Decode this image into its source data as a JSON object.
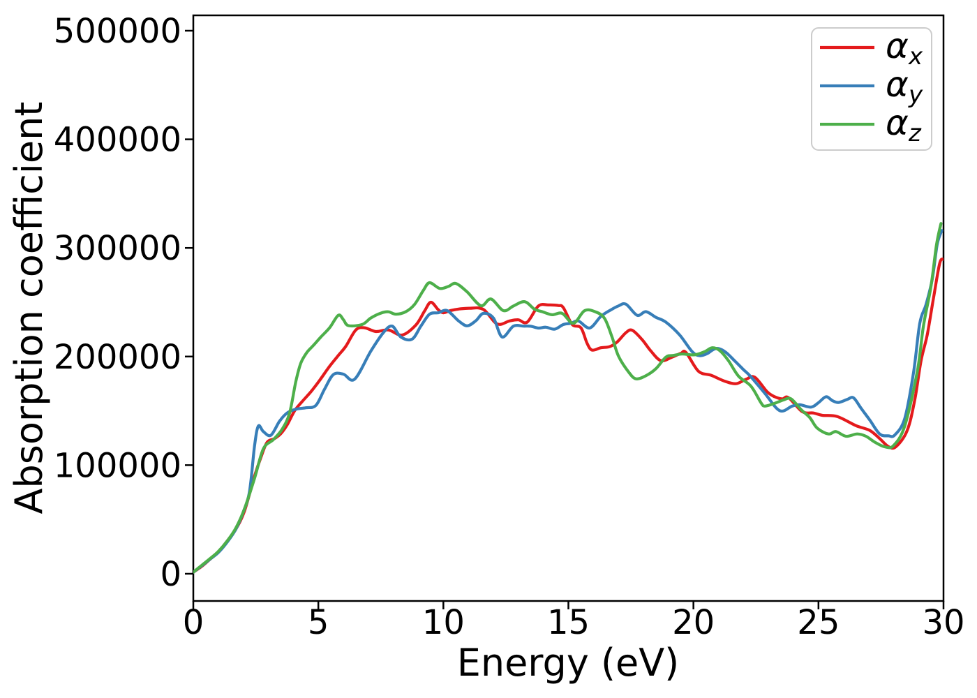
{
  "figure": {
    "background": "#ffffff",
    "spine_color": "#000000"
  },
  "chart_data": {
    "type": "line",
    "title": "",
    "xlabel": "Energy (eV)",
    "ylabel": "Absorption coefficient",
    "xlim": [
      0,
      30
    ],
    "ylim": [
      -25000,
      515000
    ],
    "xticks": [
      0,
      5,
      10,
      15,
      20,
      25,
      30
    ],
    "yticks": [
      0,
      100000,
      200000,
      300000,
      400000,
      500000
    ],
    "grid": false,
    "legend": {
      "position": "upper right",
      "frame": true,
      "border_color": "#cccccc"
    },
    "series": [
      {
        "name": "alpha_x",
        "label_base": "α",
        "label_sub": "x",
        "color": "#e41a1c",
        "points": [
          [
            0,
            1500
          ],
          [
            0.35,
            7000
          ],
          [
            0.7,
            14000
          ],
          [
            1.0,
            20000
          ],
          [
            1.35,
            30000
          ],
          [
            1.7,
            41000
          ],
          [
            2.05,
            58000
          ],
          [
            2.45,
            90000
          ],
          [
            2.7,
            107000
          ],
          [
            2.95,
            121000
          ],
          [
            3.25,
            124500
          ],
          [
            3.5,
            129000
          ],
          [
            3.75,
            137000
          ],
          [
            4.05,
            150000
          ],
          [
            4.35,
            158500
          ],
          [
            4.7,
            167500
          ],
          [
            5.05,
            178000
          ],
          [
            5.45,
            191000
          ],
          [
            5.8,
            201000
          ],
          [
            6.1,
            209500
          ],
          [
            6.5,
            224500
          ],
          [
            6.85,
            226500
          ],
          [
            7.3,
            223000
          ],
          [
            7.8,
            224500
          ],
          [
            8.35,
            219800
          ],
          [
            8.9,
            229000
          ],
          [
            9.25,
            242000
          ],
          [
            9.5,
            250000
          ],
          [
            9.8,
            243000
          ],
          [
            10.0,
            240300
          ],
          [
            10.3,
            242400
          ],
          [
            10.65,
            243800
          ],
          [
            11.05,
            244500
          ],
          [
            11.6,
            243400
          ],
          [
            12.15,
            230000
          ],
          [
            12.65,
            232800
          ],
          [
            13.0,
            233800
          ],
          [
            13.35,
            231600
          ],
          [
            13.8,
            246500
          ],
          [
            14.2,
            247500
          ],
          [
            14.6,
            247000
          ],
          [
            14.8,
            245000
          ],
          [
            15.15,
            229500
          ],
          [
            15.5,
            226500
          ],
          [
            15.75,
            212000
          ],
          [
            15.95,
            205900
          ],
          [
            16.3,
            208100
          ],
          [
            16.65,
            209100
          ],
          [
            16.95,
            213400
          ],
          [
            17.3,
            222000
          ],
          [
            17.55,
            224200
          ],
          [
            17.95,
            215500
          ],
          [
            18.3,
            205000
          ],
          [
            18.7,
            196200
          ],
          [
            19.15,
            199500
          ],
          [
            19.5,
            203000
          ],
          [
            19.7,
            203800
          ],
          [
            20.2,
            186500
          ],
          [
            20.7,
            182800
          ],
          [
            21.25,
            177300
          ],
          [
            21.7,
            175000
          ],
          [
            22.1,
            179000
          ],
          [
            22.45,
            181000
          ],
          [
            22.95,
            167500
          ],
          [
            23.25,
            163000
          ],
          [
            23.55,
            161000
          ],
          [
            23.8,
            162200
          ],
          [
            24.35,
            149300
          ],
          [
            24.8,
            148000
          ],
          [
            25.15,
            145900
          ],
          [
            25.75,
            144800
          ],
          [
            26.5,
            136400
          ],
          [
            27.05,
            132000
          ],
          [
            27.45,
            124400
          ],
          [
            27.8,
            117000
          ],
          [
            28.1,
            117000
          ],
          [
            28.55,
            132000
          ],
          [
            28.85,
            160000
          ],
          [
            29.1,
            196000
          ],
          [
            29.35,
            220000
          ],
          [
            29.6,
            254000
          ],
          [
            29.85,
            286000
          ],
          [
            30,
            289500
          ]
        ]
      },
      {
        "name": "alpha_y",
        "label_base": "α",
        "label_sub": "y",
        "color": "#377eb8",
        "points": [
          [
            0,
            1500
          ],
          [
            0.35,
            7500
          ],
          [
            0.7,
            14000
          ],
          [
            1.0,
            19500
          ],
          [
            1.35,
            29000
          ],
          [
            1.7,
            41000
          ],
          [
            2.0,
            57000
          ],
          [
            2.25,
            76000
          ],
          [
            2.45,
            118000
          ],
          [
            2.6,
            136000
          ],
          [
            2.8,
            131000
          ],
          [
            3.1,
            127500
          ],
          [
            3.45,
            140500
          ],
          [
            3.75,
            148000
          ],
          [
            4.1,
            151500
          ],
          [
            4.5,
            152800
          ],
          [
            4.9,
            155000
          ],
          [
            5.25,
            170000
          ],
          [
            5.6,
            183400
          ],
          [
            6.0,
            183800
          ],
          [
            6.45,
            179100
          ],
          [
            7.1,
            205000
          ],
          [
            7.6,
            222000
          ],
          [
            7.95,
            228000
          ],
          [
            8.3,
            218000
          ],
          [
            8.75,
            216000
          ],
          [
            9.1,
            228000
          ],
          [
            9.45,
            239000
          ],
          [
            9.8,
            240300
          ],
          [
            10.15,
            242300
          ],
          [
            10.6,
            233000
          ],
          [
            10.95,
            228300
          ],
          [
            11.3,
            233000
          ],
          [
            11.6,
            239800
          ],
          [
            12.0,
            235500
          ],
          [
            12.35,
            218000
          ],
          [
            12.8,
            228000
          ],
          [
            13.2,
            228000
          ],
          [
            13.5,
            227900
          ],
          [
            13.8,
            226200
          ],
          [
            14.1,
            227000
          ],
          [
            14.45,
            225200
          ],
          [
            14.8,
            229500
          ],
          [
            15.1,
            230600
          ],
          [
            15.4,
            232700
          ],
          [
            15.85,
            226300
          ],
          [
            16.3,
            237000
          ],
          [
            16.7,
            243000
          ],
          [
            17.0,
            246600
          ],
          [
            17.3,
            248200
          ],
          [
            17.75,
            238000
          ],
          [
            18.1,
            241300
          ],
          [
            18.5,
            236100
          ],
          [
            18.9,
            231600
          ],
          [
            19.45,
            219800
          ],
          [
            19.95,
            204500
          ],
          [
            20.25,
            200800
          ],
          [
            20.55,
            202700
          ],
          [
            20.8,
            206500
          ],
          [
            21.0,
            207400
          ],
          [
            21.3,
            203800
          ],
          [
            21.65,
            196000
          ],
          [
            22.0,
            188000
          ],
          [
            22.3,
            181300
          ],
          [
            22.85,
            166300
          ],
          [
            23.45,
            150200
          ],
          [
            23.95,
            154400
          ],
          [
            24.25,
            155600
          ],
          [
            24.7,
            153400
          ],
          [
            25.0,
            157500
          ],
          [
            25.3,
            163000
          ],
          [
            25.55,
            159500
          ],
          [
            25.8,
            157700
          ],
          [
            26.15,
            160500
          ],
          [
            26.4,
            162000
          ],
          [
            26.7,
            152500
          ],
          [
            27.05,
            141600
          ],
          [
            27.45,
            128700
          ],
          [
            27.8,
            127000
          ],
          [
            28.05,
            127700
          ],
          [
            28.45,
            143000
          ],
          [
            28.8,
            185000
          ],
          [
            29.05,
            230500
          ],
          [
            29.3,
            247700
          ],
          [
            29.55,
            271300
          ],
          [
            29.75,
            303400
          ],
          [
            29.93,
            316000
          ]
        ]
      },
      {
        "name": "alpha_z",
        "label_base": "α",
        "label_sub": "z",
        "color": "#4daf4a",
        "points": [
          [
            0,
            1500
          ],
          [
            0.35,
            8000
          ],
          [
            0.7,
            14500
          ],
          [
            1.0,
            20500
          ],
          [
            1.35,
            30000
          ],
          [
            1.7,
            42000
          ],
          [
            2.05,
            60000
          ],
          [
            2.45,
            88000
          ],
          [
            2.8,
            115000
          ],
          [
            3.2,
            123500
          ],
          [
            3.55,
            133000
          ],
          [
            3.85,
            148000
          ],
          [
            4.1,
            177000
          ],
          [
            4.3,
            194000
          ],
          [
            4.55,
            204000
          ],
          [
            4.8,
            210200
          ],
          [
            5.1,
            218000
          ],
          [
            5.45,
            226500
          ],
          [
            5.8,
            238000
          ],
          [
            6.0,
            234000
          ],
          [
            6.2,
            228500
          ],
          [
            6.75,
            229500
          ],
          [
            7.1,
            235500
          ],
          [
            7.5,
            240000
          ],
          [
            7.8,
            241200
          ],
          [
            8.1,
            239000
          ],
          [
            8.5,
            241300
          ],
          [
            8.85,
            248000
          ],
          [
            9.2,
            261000
          ],
          [
            9.45,
            268000
          ],
          [
            9.85,
            262700
          ],
          [
            10.2,
            264500
          ],
          [
            10.5,
            267300
          ],
          [
            10.95,
            259500
          ],
          [
            11.5,
            246800
          ],
          [
            11.9,
            253000
          ],
          [
            12.4,
            242300
          ],
          [
            12.8,
            246500
          ],
          [
            13.25,
            250500
          ],
          [
            13.65,
            243500
          ],
          [
            13.95,
            241300
          ],
          [
            14.35,
            238500
          ],
          [
            14.75,
            239800
          ],
          [
            15.2,
            230600
          ],
          [
            15.65,
            242300
          ],
          [
            16.1,
            241000
          ],
          [
            16.45,
            234900
          ],
          [
            16.75,
            217700
          ],
          [
            17.0,
            200500
          ],
          [
            17.4,
            186000
          ],
          [
            17.7,
            179500
          ],
          [
            18.1,
            182400
          ],
          [
            18.5,
            188800
          ],
          [
            18.9,
            199500
          ],
          [
            19.2,
            201000
          ],
          [
            19.55,
            202300
          ],
          [
            20.05,
            201600
          ],
          [
            20.45,
            204500
          ],
          [
            20.75,
            208100
          ],
          [
            21.05,
            205500
          ],
          [
            21.4,
            196200
          ],
          [
            21.8,
            182000
          ],
          [
            22.3,
            172700
          ],
          [
            22.7,
            157500
          ],
          [
            22.85,
            154400
          ],
          [
            23.2,
            156500
          ],
          [
            23.6,
            160000
          ],
          [
            23.9,
            161100
          ],
          [
            24.3,
            151200
          ],
          [
            24.65,
            143800
          ],
          [
            24.95,
            134100
          ],
          [
            25.4,
            128700
          ],
          [
            25.7,
            130900
          ],
          [
            26.1,
            126600
          ],
          [
            26.55,
            128700
          ],
          [
            26.9,
            126600
          ],
          [
            27.25,
            121200
          ],
          [
            27.65,
            116900
          ],
          [
            28.0,
            118000
          ],
          [
            28.45,
            136200
          ],
          [
            28.95,
            186000
          ],
          [
            29.2,
            228300
          ],
          [
            29.5,
            264800
          ],
          [
            29.72,
            303000
          ],
          [
            29.9,
            322500
          ]
        ]
      }
    ]
  }
}
